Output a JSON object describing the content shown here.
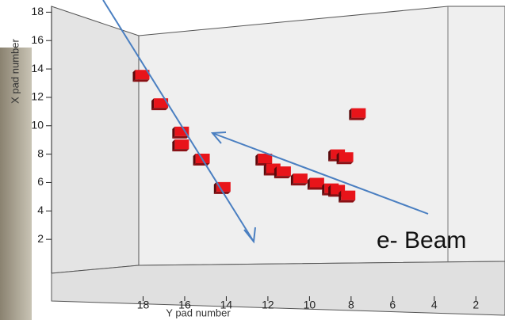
{
  "chart_data": {
    "type": "scatter",
    "x_label": "Y pad number",
    "y_label": "X pad number",
    "annotation": "e- Beam",
    "color": "#e8141a",
    "x": [
      18.0,
      17.1,
      16.1,
      16.1,
      15.1,
      14.1,
      12.1,
      11.7,
      11.2,
      10.4,
      9.6,
      8.9,
      8.6,
      8.1,
      8.6,
      8.2,
      7.6
    ],
    "values": [
      13.6,
      11.6,
      9.6,
      8.7,
      7.7,
      5.7,
      7.7,
      7.0,
      6.8,
      6.3,
      6.0,
      5.6,
      5.5,
      5.1,
      8.0,
      7.8,
      10.9
    ],
    "xlim": [
      18.4,
      0.6
    ],
    "xticks": [
      18,
      16,
      14,
      12,
      10,
      8,
      6,
      4,
      2
    ],
    "ylim": [
      0,
      18.3
    ],
    "yticks": [
      2,
      4,
      6,
      8,
      10,
      12,
      14,
      16,
      18
    ]
  }
}
